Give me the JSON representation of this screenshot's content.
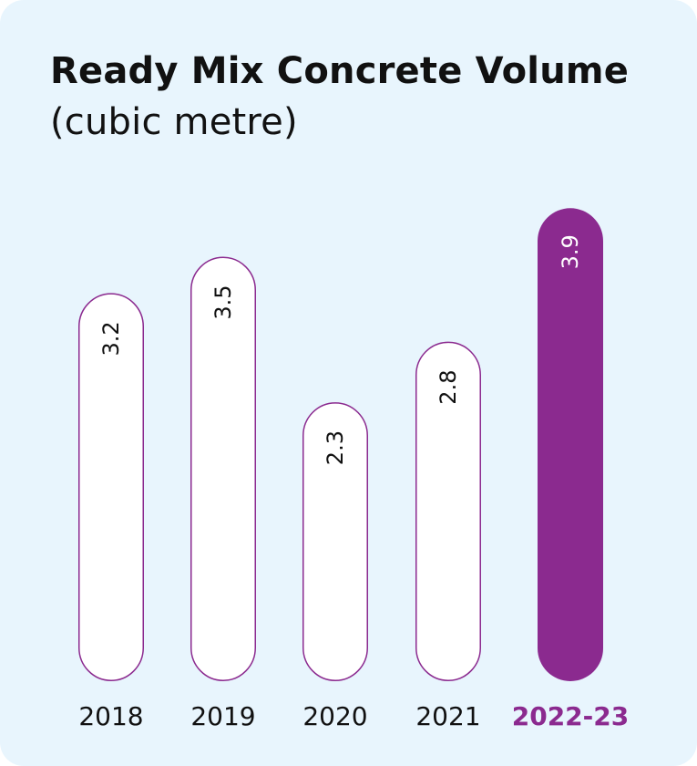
{
  "title": {
    "bold": "Ready Mix Concrete Volume",
    "unit": "(cubic metre)"
  },
  "colors": {
    "background": "#e8f5fd",
    "accent": "#8b2a8f",
    "bar_fill": "#ffffff",
    "text": "#111111"
  },
  "chart_data": {
    "type": "bar",
    "title": "Ready Mix Concrete Volume (cubic metre)",
    "categories": [
      "2018",
      "2019",
      "2020",
      "2021",
      "2022-23"
    ],
    "values": [
      3.2,
      3.5,
      2.3,
      2.8,
      3.9
    ],
    "value_labels": [
      "3.2",
      "3.5",
      "2.3",
      "2.8",
      "3.9"
    ],
    "highlight_index": 4,
    "orientation": "vertical",
    "value_label_rotation": "rotated -90",
    "grid": false,
    "legend": "none"
  }
}
